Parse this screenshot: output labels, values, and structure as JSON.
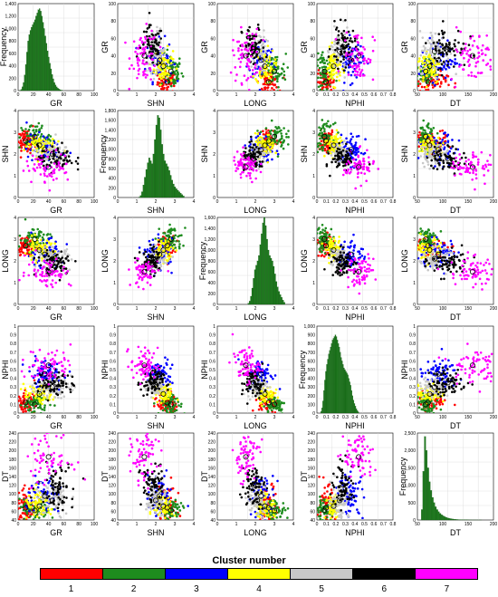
{
  "variables": [
    "GR",
    "SHN",
    "LONG",
    "NPHI",
    "DT"
  ],
  "ranges": {
    "GR": {
      "min": 0,
      "max": 100,
      "ticks": [
        0,
        20,
        40,
        60,
        80,
        100
      ]
    },
    "SHN": {
      "min": 0,
      "max": 4,
      "ticks": [
        0,
        1,
        2,
        3,
        4
      ]
    },
    "LONG": {
      "min": 0,
      "max": 4,
      "ticks": [
        0,
        1,
        2,
        3,
        4
      ]
    },
    "NPHI": {
      "min": 0,
      "max": 1,
      "ticks": [
        0,
        0.1,
        0.2,
        0.3,
        0.4,
        0.5,
        0.6,
        0.7,
        0.8,
        0.9,
        1
      ]
    },
    "DT": {
      "min": 40,
      "max": 240,
      "ticks": [
        40,
        60,
        80,
        100,
        120,
        140,
        160,
        180,
        200,
        220,
        240
      ]
    }
  },
  "tick_labels": {
    "GR": [
      "0",
      "20",
      "40",
      "60",
      "80",
      "100"
    ],
    "SHN": [
      "0",
      "1",
      "2",
      "3",
      "4"
    ],
    "LONG": [
      "0",
      "1",
      "2",
      "3",
      "4"
    ],
    "NPHI": [
      "0",
      "0.1",
      "0.2",
      "0.3",
      "0.4",
      "0.5",
      "0.6",
      "0.7",
      "0.8",
      "0.9",
      "1"
    ],
    "DT": [
      "40",
      "60",
      "80",
      "100",
      "120",
      "140",
      "160",
      "180",
      "200",
      "220",
      "240"
    ]
  },
  "x_tick_labels": {
    "GR": [
      "0",
      "20",
      "40",
      "60",
      "80",
      "100"
    ],
    "SHN": [
      "0",
      "1",
      "2",
      "3",
      "4"
    ],
    "LONG": [
      "0",
      "1",
      "2",
      "3",
      "4"
    ],
    "NPHI": [
      "0",
      "0.1",
      "0.2",
      "0.3",
      "0.4",
      "0.5",
      "0.6",
      "0.7",
      "0.8"
    ],
    "DT": [
      "50",
      "100",
      "150",
      "200"
    ]
  },
  "histograms": {
    "GR": {
      "ylabel": "Frequency",
      "xlabel": "GR",
      "ymax": 1400,
      "yticks": [
        "0",
        "200",
        "400",
        "600",
        "800",
        "1,000",
        "1,200",
        "1,400"
      ],
      "bin_start": 2,
      "bin_width": 1.5,
      "values": [
        5,
        20,
        60,
        130,
        250,
        420,
        620,
        800,
        900,
        970,
        1020,
        1060,
        1100,
        1140,
        1200,
        1250,
        1300,
        1320,
        1280,
        1200,
        1100,
        1000,
        880,
        760,
        640,
        540,
        440,
        350,
        260,
        190,
        130,
        90,
        60,
        40,
        25,
        15,
        8,
        5
      ]
    },
    "SHN": {
      "ylabel": "Frequency",
      "xlabel": "SHN",
      "ymax": 1800,
      "yticks": [
        "0",
        "200",
        "400",
        "600",
        "800",
        "1,000",
        "1,200",
        "1,400",
        "1,600",
        "1,800"
      ],
      "bin_start": 1.1,
      "bin_width": 0.075,
      "values": [
        10,
        40,
        120,
        260,
        420,
        580,
        720,
        820,
        760,
        700,
        900,
        1200,
        1500,
        1700,
        1650,
        1400,
        1100,
        900,
        760,
        700,
        640,
        560,
        460,
        360,
        280,
        220,
        180,
        150,
        120,
        90,
        60,
        30
      ]
    },
    "LONG": {
      "ylabel": "Frequency",
      "xlabel": "LONG",
      "ymax": 1600,
      "yticks": [
        "0",
        "200",
        "400",
        "600",
        "800",
        "1,000",
        "1,200",
        "1,400",
        "1,600"
      ],
      "bin_start": 1.6,
      "bin_width": 0.07,
      "values": [
        20,
        60,
        150,
        300,
        480,
        640,
        720,
        800,
        900,
        1100,
        1300,
        1500,
        1600,
        1450,
        1200,
        1000,
        900,
        850,
        800,
        700,
        560,
        420,
        320,
        240,
        180,
        130,
        80,
        40
      ]
    },
    "NPHI": {
      "ylabel": "Frequency",
      "xlabel": "NPHI",
      "ymax": 1000,
      "yticks": [
        "0",
        "100",
        "200",
        "300",
        "400",
        "500",
        "600",
        "700",
        "800",
        "900",
        "1,000"
      ],
      "bin_start": 0.05,
      "bin_width": 0.0125,
      "values": [
        20,
        60,
        140,
        260,
        380,
        480,
        560,
        620,
        680,
        720,
        760,
        800,
        840,
        860,
        880,
        900,
        880,
        840,
        800,
        760,
        700,
        640,
        600,
        560,
        520,
        500,
        480,
        460,
        440,
        400,
        360,
        320,
        260,
        200,
        150,
        110,
        80,
        50,
        30,
        15
      ]
    },
    "DT": {
      "ylabel": "Frequency",
      "xlabel": "DT",
      "ymax": 2500,
      "yticks": [
        "0",
        "500",
        "1,000",
        "1,500",
        "2,000",
        "2,500"
      ],
      "bin_start": 50,
      "bin_width": 4,
      "values": [
        300,
        1400,
        2400,
        2000,
        1500,
        1100,
        850,
        650,
        500,
        380,
        300,
        240,
        190,
        150,
        120,
        95,
        75,
        60,
        48,
        38,
        30,
        24,
        19,
        15,
        12,
        10,
        8,
        6,
        5,
        4,
        3,
        2,
        2,
        1,
        1,
        1,
        1,
        1,
        1,
        1
      ]
    }
  },
  "cluster_centroids": [
    {
      "cluster": 1,
      "GR": 10,
      "SHN": 2.6,
      "LONG": 2.7,
      "NPHI": 0.12,
      "DT": 68
    },
    {
      "cluster": 2,
      "GR": 22,
      "SHN": 2.8,
      "LONG": 3.0,
      "NPHI": 0.1,
      "DT": 62
    },
    {
      "cluster": 3,
      "GR": 35,
      "SHN": 2.2,
      "LONG": 2.3,
      "NPHI": 0.45,
      "DT": 95
    },
    {
      "cluster": 4,
      "GR": 28,
      "SHN": 2.4,
      "LONG": 2.5,
      "NPHI": 0.22,
      "DT": 72
    },
    {
      "cluster": 5,
      "GR": 45,
      "SHN": 2.0,
      "LONG": 2.1,
      "NPHI": 0.3,
      "DT": 85
    },
    {
      "cluster": 6,
      "GR": 50,
      "SHN": 1.8,
      "LONG": 1.9,
      "NPHI": 0.35,
      "DT": 120
    },
    {
      "cluster": 7,
      "GR": 40,
      "SHN": 1.4,
      "LONG": 1.5,
      "NPHI": 0.55,
      "DT": 185
    }
  ],
  "cluster_spread": {
    "1": {
      "GR": 6,
      "SHN": 0.25,
      "LONG": 0.25,
      "NPHI": 0.06,
      "DT": 25
    },
    "2": {
      "GR": 10,
      "SHN": 0.3,
      "LONG": 0.3,
      "NPHI": 0.06,
      "DT": 12
    },
    "3": {
      "GR": 12,
      "SHN": 0.35,
      "LONG": 0.35,
      "NPHI": 0.08,
      "DT": 25
    },
    "4": {
      "GR": 10,
      "SHN": 0.25,
      "LONG": 0.25,
      "NPHI": 0.05,
      "DT": 15
    },
    "5": {
      "GR": 12,
      "SHN": 0.25,
      "LONG": 0.25,
      "NPHI": 0.06,
      "DT": 20
    },
    "6": {
      "GR": 12,
      "SHN": 0.3,
      "LONG": 0.3,
      "NPHI": 0.08,
      "DT": 25
    },
    "7": {
      "GR": 15,
      "SHN": 0.35,
      "LONG": 0.35,
      "NPHI": 0.1,
      "DT": 30
    }
  },
  "legend": {
    "title": "Cluster number",
    "clusters": [
      {
        "label": "1",
        "color": "#ff0000"
      },
      {
        "label": "2",
        "color": "#1e8c1e"
      },
      {
        "label": "3",
        "color": "#0000ff"
      },
      {
        "label": "4",
        "color": "#ffff00"
      },
      {
        "label": "5",
        "color": "#c8c8c8"
      },
      {
        "label": "6",
        "color": "#000000"
      },
      {
        "label": "7",
        "color": "#ff00ff"
      }
    ]
  },
  "chart_data": {
    "type": "scatter",
    "title": "",
    "variables": [
      "GR",
      "SHN",
      "LONG",
      "NPHI",
      "DT"
    ],
    "diagonal": "histogram",
    "off_diagonal": "scatter colored by cluster with centroid circles",
    "legend_placement": "bottom",
    "grid": true
  }
}
